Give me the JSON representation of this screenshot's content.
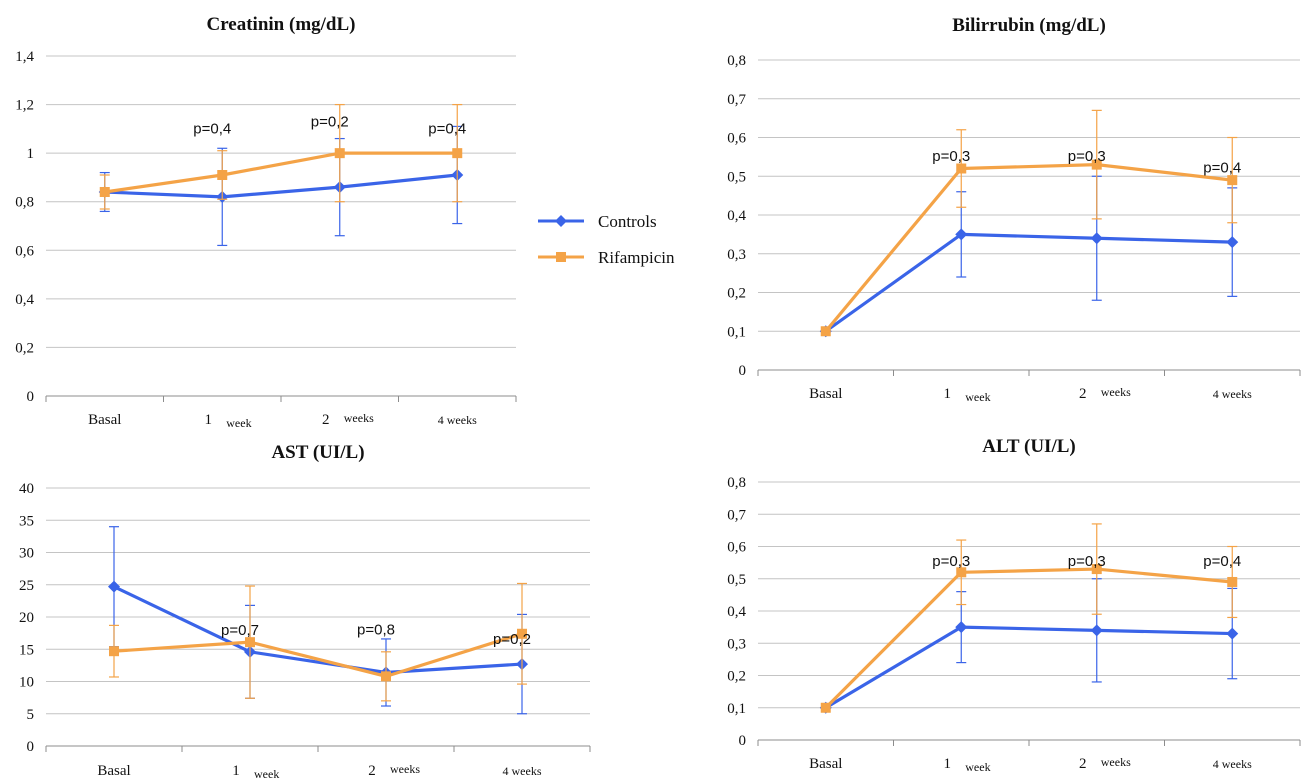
{
  "legend": [
    {
      "name": "Controls",
      "color": "#3a64e8",
      "marker": "diamond"
    },
    {
      "name": "Rifampicin",
      "color": "#f4a347",
      "marker": "square"
    }
  ],
  "chart_data": [
    {
      "type": "line",
      "title": "Creatinin (mg/dL)",
      "categories": [
        "Basal",
        "1",
        "2",
        "4 weeks"
      ],
      "category_suffix": [
        "",
        "week",
        "weeks",
        ""
      ],
      "yticks": [
        "0",
        "0,2",
        "0,4",
        "0,6",
        "0,8",
        "1",
        "1,2",
        "1,4"
      ],
      "ylim": [
        0,
        1.4
      ],
      "grid": true,
      "series": [
        {
          "name": "Controls",
          "values": [
            0.84,
            0.82,
            0.86,
            0.91
          ],
          "err": [
            0.08,
            0.2,
            0.2,
            0.2
          ]
        },
        {
          "name": "Rifampicin",
          "values": [
            0.84,
            0.91,
            1.0,
            1.0
          ],
          "err": [
            0.07,
            0.1,
            0.2,
            0.2
          ]
        }
      ],
      "annotations": [
        {
          "text": "p=0,4",
          "cat": 1,
          "y": 1.08
        },
        {
          "text": "p=0,2",
          "cat": 2,
          "y": 1.11
        },
        {
          "text": "p=0,4",
          "cat": 3,
          "y": 1.08
        }
      ]
    },
    {
      "type": "line",
      "title": "Bilirrubin (mg/dL)",
      "categories": [
        "Basal",
        "1",
        "2",
        "4 weeks"
      ],
      "category_suffix": [
        "",
        "week",
        "weeks",
        ""
      ],
      "yticks": [
        "0",
        "0,1",
        "0,2",
        "0,3",
        "0,4",
        "0,5",
        "0,6",
        "0,7",
        "0,8"
      ],
      "ylim": [
        0,
        0.8
      ],
      "grid": true,
      "series": [
        {
          "name": "Controls",
          "values": [
            0.1,
            0.35,
            0.34,
            0.33
          ],
          "err": [
            0,
            0.11,
            0.16,
            0.14
          ]
        },
        {
          "name": "Rifampicin",
          "values": [
            0.1,
            0.52,
            0.53,
            0.49
          ],
          "err": [
            0,
            0.1,
            0.14,
            0.11
          ]
        }
      ],
      "annotations": [
        {
          "text": "p=0,3",
          "cat": 1,
          "y": 0.54
        },
        {
          "text": "p=0,3",
          "cat": 2,
          "y": 0.54
        },
        {
          "text": "p=0,4",
          "cat": 3,
          "y": 0.51
        }
      ]
    },
    {
      "type": "line",
      "title": "AST (UI/L)",
      "categories": [
        "Basal",
        "1",
        "2",
        "4 weeks"
      ],
      "category_suffix": [
        "",
        "week",
        "weeks",
        ""
      ],
      "yticks": [
        "0",
        "5",
        "10",
        "15",
        "20",
        "25",
        "30",
        "35",
        "40"
      ],
      "ylim": [
        0,
        40
      ],
      "grid": true,
      "series": [
        {
          "name": "Controls",
          "values": [
            24.7,
            14.6,
            11.4,
            12.7
          ],
          "err": [
            9.3,
            7.2,
            5.2,
            7.7
          ]
        },
        {
          "name": "Rifampicin",
          "values": [
            14.7,
            16.1,
            10.8,
            17.4
          ],
          "err": [
            4.0,
            8.7,
            3.8,
            7.8
          ]
        }
      ],
      "annotations": [
        {
          "text": "p=0,7",
          "cat": 1,
          "y": 17.2
        },
        {
          "text": "p=0,8",
          "cat": 2,
          "y": 17.3
        },
        {
          "text": "p=0,2",
          "cat": 3,
          "y": 15.8
        }
      ]
    },
    {
      "type": "line",
      "title": "ALT (UI/L)",
      "categories": [
        "Basal",
        "1",
        "2",
        "4 weeks"
      ],
      "category_suffix": [
        "",
        "week",
        "weeks",
        ""
      ],
      "yticks": [
        "0",
        "0,1",
        "0,2",
        "0,3",
        "0,4",
        "0,5",
        "0,6",
        "0,7",
        "0,8"
      ],
      "ylim": [
        0,
        0.8
      ],
      "grid": true,
      "series": [
        {
          "name": "Controls",
          "values": [
            0.1,
            0.35,
            0.34,
            0.33
          ],
          "err": [
            0,
            0.11,
            0.16,
            0.14
          ]
        },
        {
          "name": "Rifampicin",
          "values": [
            0.1,
            0.52,
            0.53,
            0.49
          ],
          "err": [
            0,
            0.1,
            0.14,
            0.11
          ]
        }
      ],
      "annotations": [
        {
          "text": "p=0,3",
          "cat": 1,
          "y": 0.54
        },
        {
          "text": "p=0,3",
          "cat": 2,
          "y": 0.54
        },
        {
          "text": "p=0,4",
          "cat": 3,
          "y": 0.54
        }
      ]
    }
  ]
}
